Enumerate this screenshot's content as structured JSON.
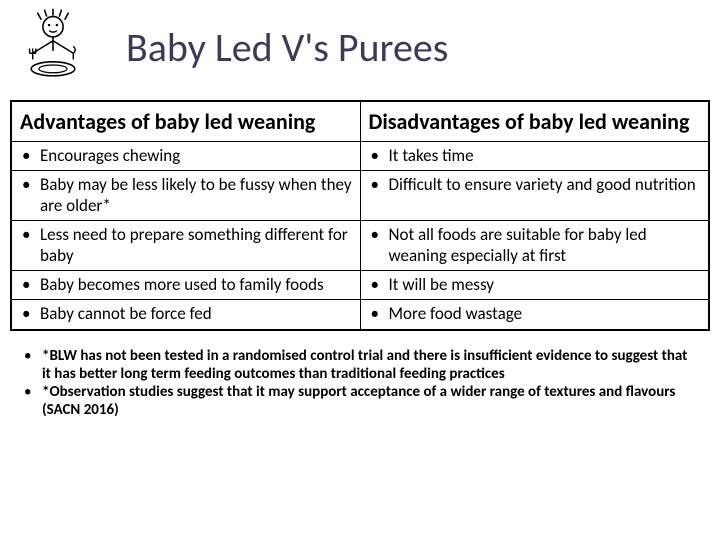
{
  "title": "Baby Led V's Purees",
  "title_color": "#3d3a56",
  "title_fontsize": 40,
  "table": {
    "headers": {
      "left": "Advantages of baby led weaning",
      "right": "Disadvantages of baby led weaning"
    },
    "rows": [
      {
        "left": "Encourages chewing",
        "right": "It takes time"
      },
      {
        "left": "Baby may be less likely to be fussy when they are older*",
        "right": "Difficult to ensure variety and good nutrition"
      },
      {
        "left": "Less need to prepare something different for baby",
        "right": "Not all foods are suitable for baby led weaning especially at first"
      },
      {
        "left": "Baby becomes more used to family foods",
        "right": "It will be messy"
      },
      {
        "left": "Baby cannot be force fed",
        "right": "More food wastage"
      }
    ],
    "border_color": "#000000",
    "header_fontsize": 22,
    "cell_fontsize": 17,
    "bullet_char": "•"
  },
  "footnotes": [
    "*BLW has not been tested in a randomised control trial and there is insufficient evidence to suggest that it has better long term feeding outcomes than traditional feeding practices",
    "*Observation studies suggest that it may support acceptance of a wider range of textures and flavours (SACN 2016)"
  ],
  "footnote_fontsize": 15,
  "background_color": "#ffffff"
}
